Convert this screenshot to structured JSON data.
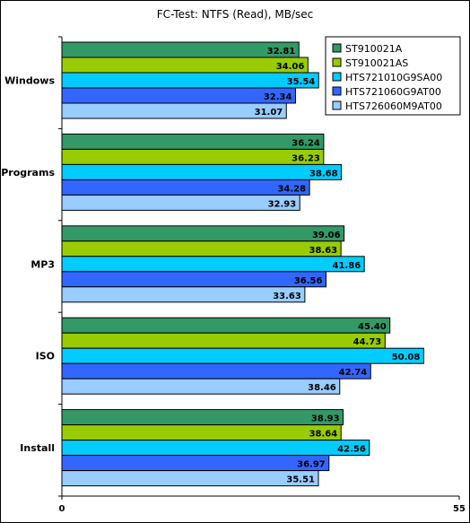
{
  "chart_data": {
    "type": "bar",
    "orientation": "horizontal",
    "title": "FC-Test: NTFS (Read), MB/sec",
    "xlim": [
      0,
      55
    ],
    "x_ticks": [
      "0",
      "55"
    ],
    "grid": false,
    "legend_position": "top-right",
    "categories": [
      "Windows",
      "Programs",
      "MP3",
      "ISO",
      "Install"
    ],
    "series": [
      {
        "name": "ST910021A",
        "color": "#339966",
        "values": [
          32.81,
          36.24,
          39.06,
          45.4,
          38.93
        ],
        "labels": [
          "32.81",
          "36.24",
          "39.06",
          "45.40",
          "38.93"
        ]
      },
      {
        "name": "ST910021AS",
        "color": "#99CC00",
        "values": [
          34.06,
          36.23,
          38.63,
          44.73,
          38.64
        ],
        "labels": [
          "34.06",
          "36.23",
          "38.63",
          "44.73",
          "38.64"
        ]
      },
      {
        "name": "HTS721010G9SA00",
        "color": "#00CCFF",
        "values": [
          35.54,
          38.68,
          41.86,
          50.08,
          42.56
        ],
        "labels": [
          "35.54",
          "38.68",
          "41.86",
          "50.08",
          "42.56"
        ]
      },
      {
        "name": "HTS721060G9AT00",
        "color": "#3366FF",
        "values": [
          32.34,
          34.28,
          36.56,
          42.74,
          36.97
        ],
        "labels": [
          "32.34",
          "34.28",
          "36.56",
          "42.74",
          "36.97"
        ]
      },
      {
        "name": "HTS726060M9AT00",
        "color": "#99CCFF",
        "values": [
          31.07,
          32.93,
          33.63,
          38.46,
          35.51
        ],
        "labels": [
          "31.07",
          "32.93",
          "33.63",
          "38.46",
          "35.51"
        ]
      }
    ]
  }
}
